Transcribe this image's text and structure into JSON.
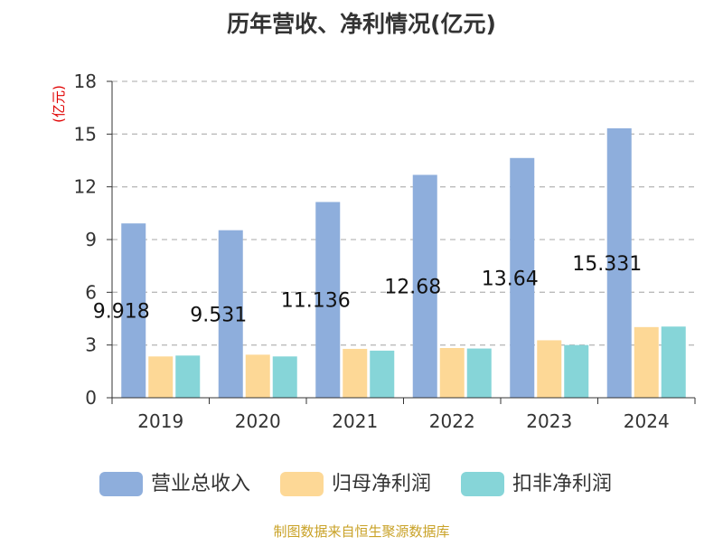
{
  "chart_data": {
    "type": "bar",
    "title": "历年营收、净利情况(亿元)",
    "ylabel": "(亿元)",
    "ylim": [
      0,
      18
    ],
    "yticks": [
      0,
      3,
      6,
      9,
      12,
      15,
      18
    ],
    "categories": [
      "2019",
      "2020",
      "2021",
      "2022",
      "2023",
      "2024"
    ],
    "series": [
      {
        "name": "营业总收入",
        "color": "#8eaedc",
        "values": [
          9.918,
          9.531,
          11.136,
          12.68,
          13.64,
          15.331
        ]
      },
      {
        "name": "归母净利润",
        "color": "#fdd896",
        "values": [
          2.35,
          2.45,
          2.78,
          2.83,
          3.27,
          4.02
        ]
      },
      {
        "name": "扣非净利润",
        "color": "#86d5d8",
        "values": [
          2.4,
          2.35,
          2.68,
          2.8,
          3.0,
          4.05
        ]
      }
    ],
    "data_labels": [
      "9.918",
      "9.531",
      "11.136",
      "12.68",
      "13.64",
      "15.331"
    ],
    "grid": true,
    "legend_position": "bottom"
  },
  "source": "制图数据来自恒生聚源数据库",
  "colors": {
    "title": "#333333",
    "ylabel": "#e00000",
    "axis": "#333333",
    "grid": "#bbbbbb",
    "source": "#c9a227"
  }
}
